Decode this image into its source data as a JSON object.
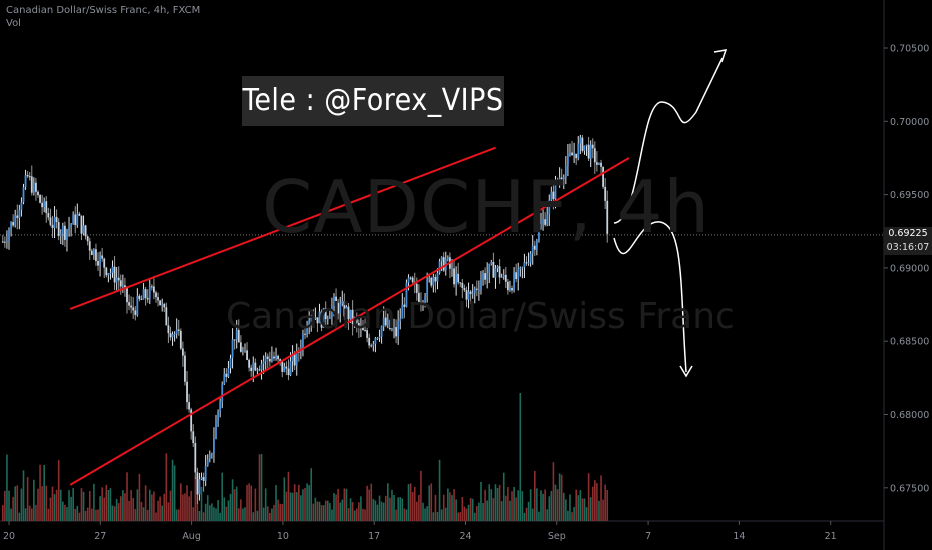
{
  "header": {
    "symbol_line": "Canadian Dollar/Swiss Franc, 4h, FXCM",
    "volume_label": "Vol"
  },
  "banner": {
    "text": "Tele : @Forex_VIPS"
  },
  "watermark": {
    "ticker": "CADCHF, 4h",
    "name": "Canadian Dollar/Swiss Franc"
  },
  "price_scale": {
    "ticks": [
      "0.70500",
      "0.70000",
      "0.69500",
      "0.69000",
      "0.68500",
      "0.68000",
      "0.67500"
    ],
    "current_price": "0.69225",
    "countdown": "03:16:07"
  },
  "chart_data": {
    "type": "candlestick",
    "title": "Canadian Dollar/Swiss Franc, 4h, FXCM",
    "ylim": [
      0.6725,
      0.708
    ],
    "x_ticks": [
      "20",
      "27",
      "Aug",
      "10",
      "17",
      "24",
      "Sep",
      "7",
      "14",
      "21"
    ],
    "close_path": [
      [
        0,
        0.6918
      ],
      [
        6,
        0.6935
      ],
      [
        12,
        0.6962
      ],
      [
        18,
        0.6945
      ],
      [
        24,
        0.693
      ],
      [
        30,
        0.6925
      ],
      [
        36,
        0.6935
      ],
      [
        42,
        0.6915
      ],
      [
        50,
        0.69
      ],
      [
        56,
        0.6892
      ],
      [
        62,
        0.687
      ],
      [
        68,
        0.688
      ],
      [
        74,
        0.6885
      ],
      [
        80,
        0.686
      ],
      [
        86,
        0.685
      ],
      [
        94,
        0.675
      ],
      [
        100,
        0.6768
      ],
      [
        106,
        0.682
      ],
      [
        112,
        0.6855
      ],
      [
        118,
        0.6835
      ],
      [
        124,
        0.6835
      ],
      [
        130,
        0.684
      ],
      [
        136,
        0.683
      ],
      [
        142,
        0.6838
      ],
      [
        148,
        0.687
      ],
      [
        154,
        0.6865
      ],
      [
        160,
        0.6875
      ],
      [
        166,
        0.687
      ],
      [
        172,
        0.6858
      ],
      [
        178,
        0.685
      ],
      [
        184,
        0.6862
      ],
      [
        190,
        0.6855
      ],
      [
        196,
        0.689
      ],
      [
        202,
        0.688
      ],
      [
        208,
        0.6895
      ],
      [
        214,
        0.6905
      ],
      [
        220,
        0.6888
      ],
      [
        226,
        0.688
      ],
      [
        232,
        0.6895
      ],
      [
        238,
        0.69
      ],
      [
        244,
        0.6888
      ],
      [
        250,
        0.6895
      ],
      [
        256,
        0.6915
      ],
      [
        262,
        0.6935
      ],
      [
        268,
        0.696
      ],
      [
        274,
        0.6975
      ],
      [
        280,
        0.6985
      ],
      [
        286,
        0.6975
      ],
      [
        290,
        0.696
      ],
      [
        292,
        0.6925
      ]
    ],
    "volume_range": [
      0,
      100
    ],
    "trendlines": [
      {
        "label": "wedge-upper",
        "from": [
          0.6872,
          0.67
        ],
        "to": [
          0.6982,
          5.33
        ],
        "color": "#e8141d"
      },
      {
        "label": "wedge-lower",
        "from": [
          0.6752,
          0.67
        ],
        "to": [
          0.6975,
          6.79
        ],
        "color": "#e8141d"
      }
    ],
    "projections": [
      "up-breakout",
      "down-breakdown"
    ],
    "colors": {
      "up": "#26a69a",
      "down": "#ef5350",
      "up_wick": "#ffffff",
      "down_wick": "#a0a0a0",
      "scale_bg": "#000000"
    }
  }
}
